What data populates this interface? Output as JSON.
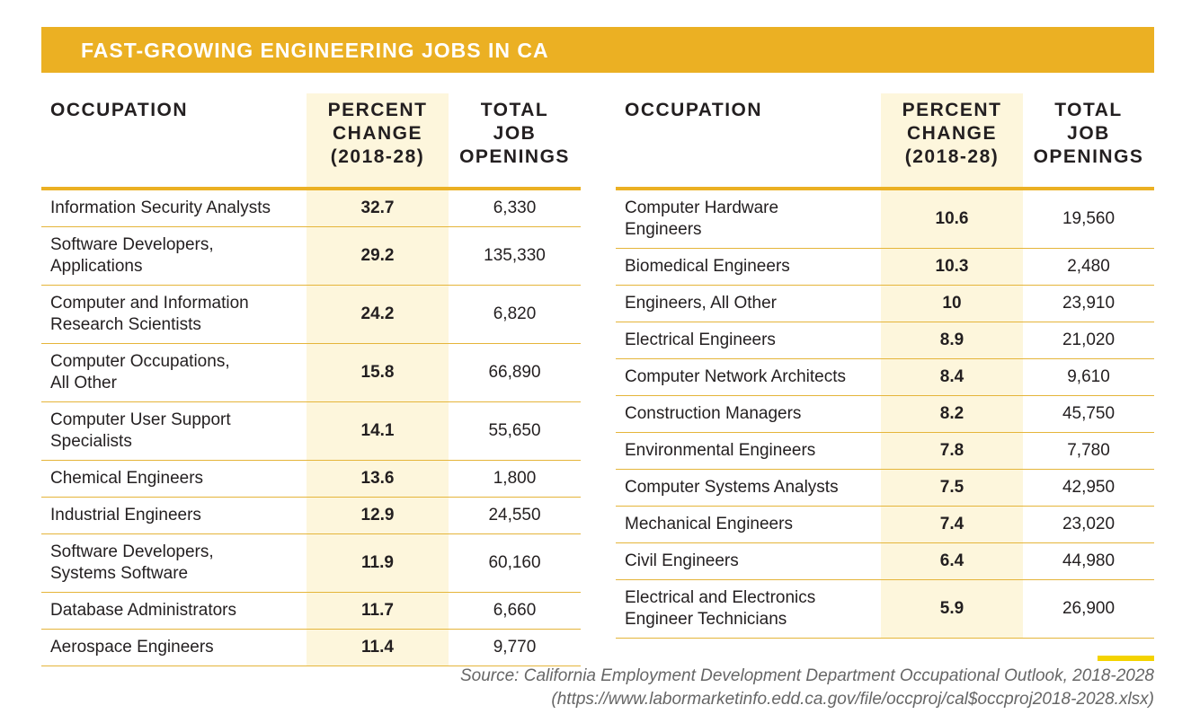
{
  "title": "FAST-GROWING ENGINEERING JOBS IN CA",
  "tables": [
    {
      "header": [
        "OCCUPATION",
        "PERCENT\nCHANGE\n(2018-28)",
        "TOTAL\nJOB\nOPENINGS"
      ],
      "rows": [
        [
          "Information Security Analysts",
          32.7,
          "6,330"
        ],
        [
          "Software Developers,\nApplications",
          29.2,
          "135,330"
        ],
        [
          "Computer and Information\nResearch Scientists",
          24.2,
          "6,820"
        ],
        [
          "Computer Occupations,\nAll Other",
          15.8,
          "66,890"
        ],
        [
          "Computer User Support\nSpecialists",
          14.1,
          "55,650"
        ],
        [
          "Chemical Engineers",
          13.6,
          "1,800"
        ],
        [
          "Industrial Engineers",
          12.9,
          "24,550"
        ],
        [
          "Software Developers,\nSystems Software",
          11.9,
          "60,160"
        ],
        [
          "Database Administrators",
          11.7,
          "6,660"
        ],
        [
          "Aerospace Engineers",
          11.4,
          "9,770"
        ]
      ]
    },
    {
      "header": [
        "OCCUPATION",
        "PERCENT\nCHANGE\n(2018-28)",
        "TOTAL\nJOB\nOPENINGS"
      ],
      "rows": [
        [
          "Computer Hardware\nEngineers",
          10.6,
          "19,560"
        ],
        [
          "Biomedical Engineers",
          10.3,
          "2,480"
        ],
        [
          "Engineers, All Other",
          10,
          "23,910"
        ],
        [
          "Electrical Engineers",
          8.9,
          "21,020"
        ],
        [
          "Computer Network Architects",
          8.4,
          "9,610"
        ],
        [
          "Construction Managers",
          8.2,
          "45,750"
        ],
        [
          "Environmental Engineers",
          7.8,
          "7,780"
        ],
        [
          "Computer Systems Analysts",
          7.5,
          "42,950"
        ],
        [
          "Mechanical Engineers",
          7.4,
          "23,020"
        ],
        [
          "Civil Engineers",
          6.4,
          "44,980"
        ],
        [
          "Electrical and Electronics\nEngineer Technicians",
          5.9,
          "26,900"
        ]
      ]
    }
  ],
  "source": [
    "Source: California Employment Development Department Occupational Outlook, 2018-2028",
    "(https://www.labormarketinfo.edd.ca.gov/file/occproj/cal$occproj2018-2028.xlsx)"
  ]
}
